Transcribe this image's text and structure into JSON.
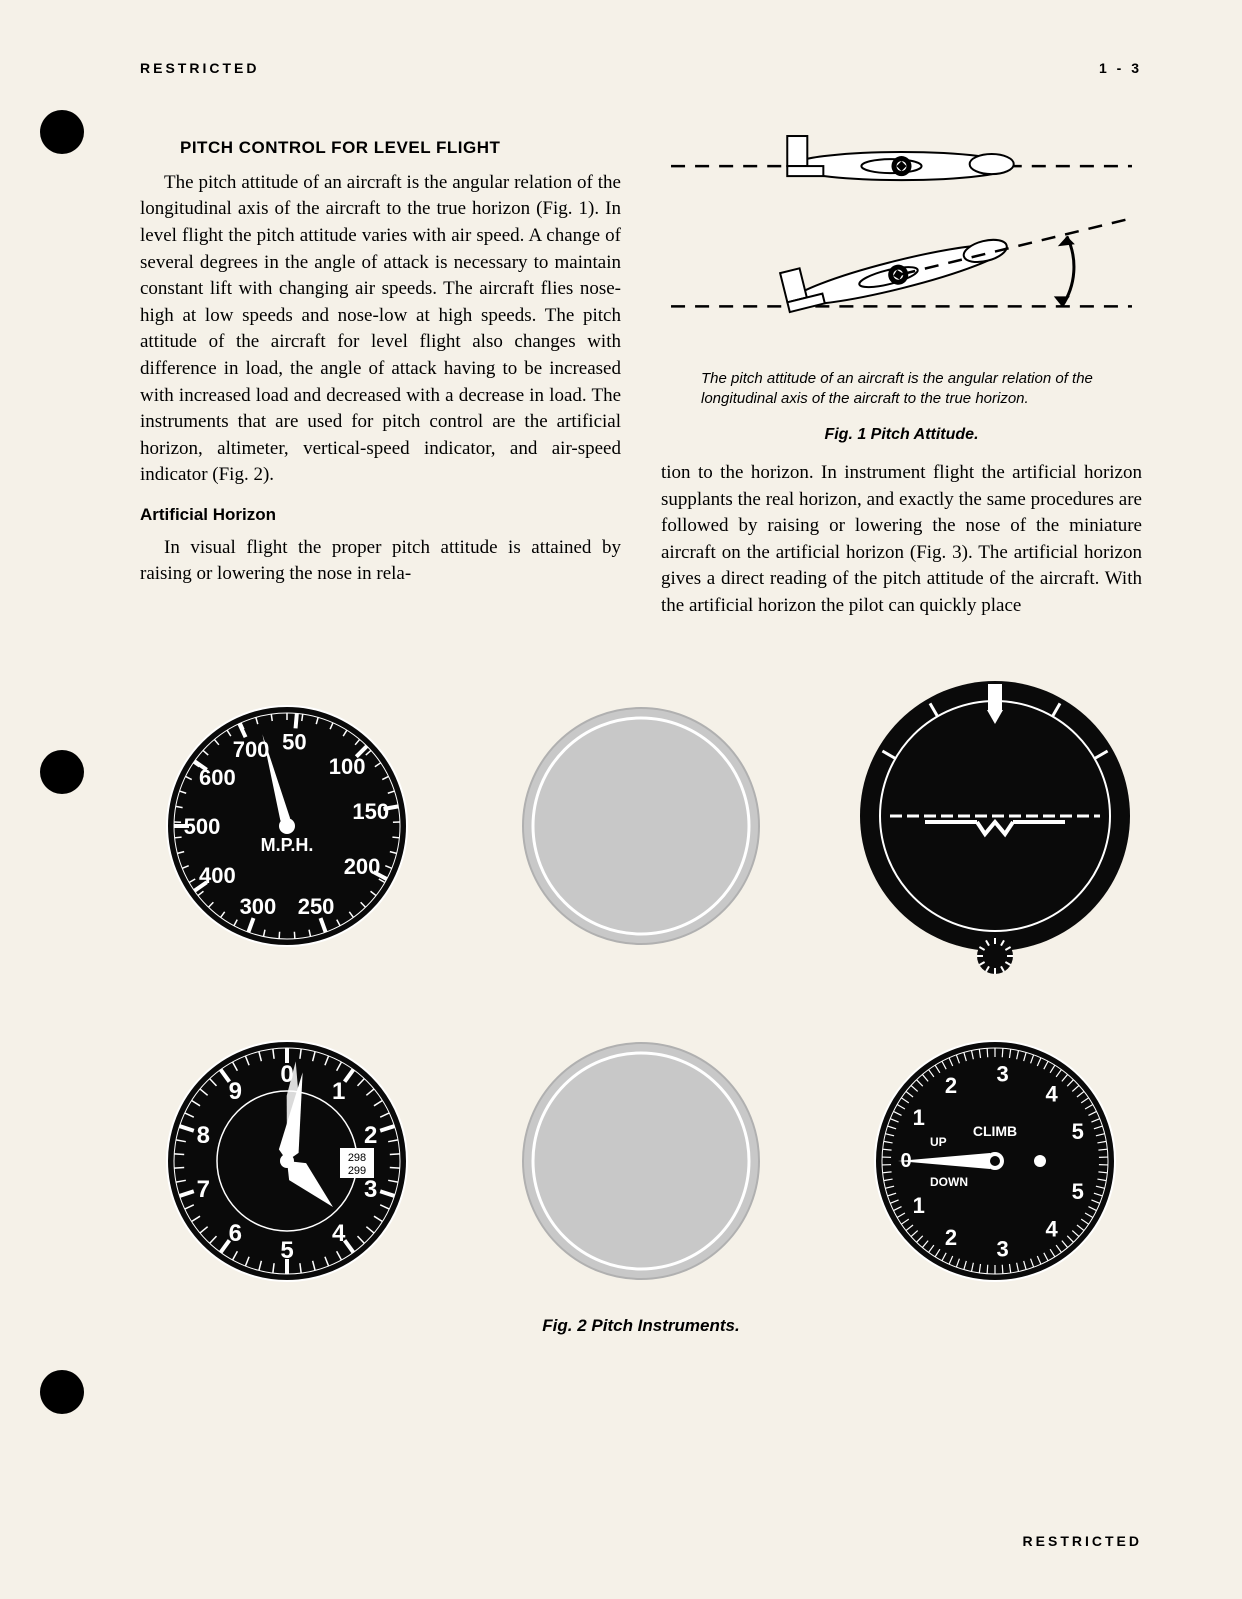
{
  "header": {
    "restricted": "RESTRICTED",
    "page": "1 - 3"
  },
  "section_title": "PITCH CONTROL FOR LEVEL FLIGHT",
  "para1": "The pitch attitude of an aircraft is the angular relation of the longitudinal axis of the aircraft to the true horizon (Fig. 1). In level flight the pitch attitude varies with air speed. A change of several degrees in the angle of attack is necessary to maintain constant lift with changing air speeds. The aircraft flies nose-high at low speeds and nose-low at high speeds. The pitch attitude of the aircraft for level flight also changes with difference in load, the angle of attack having to be increased with increased load and decreased with a decrease in load. The instruments that are used for pitch control are the artificial horizon, altimeter, vertical-speed indicator, and air-speed indicator (Fig. 2).",
  "subhead1": "Artificial Horizon",
  "para2": "In visual flight the proper pitch attitude is attained by raising or lowering the nose in rela-",
  "fig1_caption": "The pitch attitude of an aircraft is the angular relation of the longitudinal axis of the aircraft to the true horizon.",
  "fig1_label": "Fig. 1 Pitch Attitude.",
  "para3": "tion to the horizon. In instrument flight the artificial horizon supplants the real horizon, and exactly the same procedures are followed by raising or lowering the nose of the miniature aircraft on the artificial horizon (Fig. 3). The artificial horizon gives a direct reading of the pitch attitude of the aircraft. With the artificial horizon the pilot can quickly place",
  "fig2_label": "Fig. 2 Pitch Instruments.",
  "footer": "RESTRICTED",
  "airspeed": {
    "unit": "M.P.H.",
    "ticks": [
      "700",
      "50",
      "100",
      "150",
      "200",
      "250",
      "300",
      "400",
      "500",
      "600"
    ],
    "face_color": "#0a0a0a",
    "text_color": "#ffffff",
    "needle_angle": 75
  },
  "altimeter": {
    "ticks": [
      "0",
      "1",
      "2",
      "3",
      "4",
      "5",
      "6",
      "7",
      "8",
      "9"
    ],
    "window": [
      "298",
      "299"
    ],
    "face_color": "#0a0a0a",
    "text_color": "#ffffff"
  },
  "horizon": {
    "face_color": "#0a0a0a",
    "line_color": "#ffffff"
  },
  "vsi": {
    "label_up": "UP",
    "label_climb": "CLIMB",
    "label_down": "DOWN",
    "ticks_top": [
      "1",
      "2",
      "3",
      "4",
      "5"
    ],
    "ticks_bot": [
      "1",
      "2",
      "3",
      "4",
      "5"
    ],
    "zero": "0",
    "face_color": "#0a0a0a",
    "text_color": "#ffffff"
  },
  "blank_disc_color": "#c8c8c8",
  "page_bg": "#f5f1e8"
}
